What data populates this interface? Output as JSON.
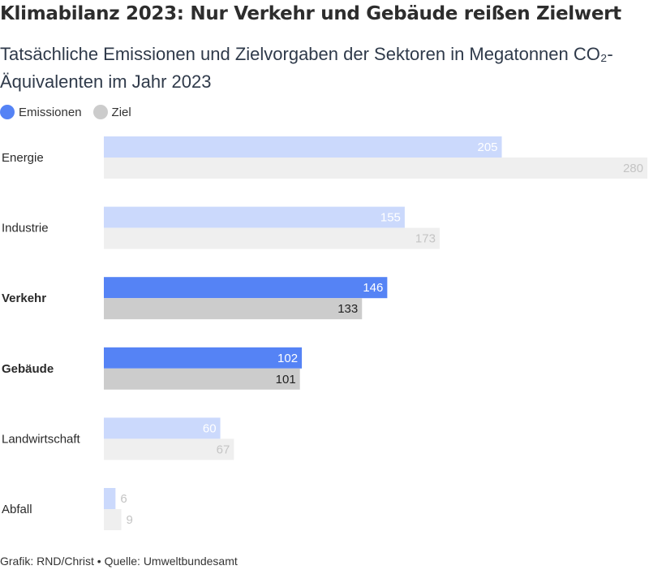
{
  "header": {
    "title": "Klimabilanz 2023: Nur Verkehr und Gebäude reißen Zielwert",
    "subtitle": "Tatsächliche Emissionen und Zielvorgaben der Sektoren in Megatonnen CO₂-Äquivalenten im Jahr 2023"
  },
  "footer": {
    "text": "Grafik: RND/Christ • Quelle: Umweltbundesamt"
  },
  "colors": {
    "emissions_highlight": "#5583f5",
    "emissions_muted": "#cbd9fc",
    "target_highlight": "#cccccc",
    "target_muted": "#efefef",
    "label_light": "#ffffff",
    "label_dark_highlight": "#222222",
    "label_muted": "#c4c4c4"
  },
  "chart_data": {
    "type": "bar",
    "orientation": "horizontal",
    "categories": [
      "Energie",
      "Industrie",
      "Verkehr",
      "Gebäude",
      "Landwirtschaft",
      "Abfall"
    ],
    "highlighted": [
      "Verkehr",
      "Gebäude"
    ],
    "series": [
      {
        "name": "Emissionen",
        "values": [
          205,
          155,
          146,
          102,
          60,
          6
        ]
      },
      {
        "name": "Ziel",
        "values": [
          280,
          173,
          133,
          101,
          67,
          9
        ]
      }
    ],
    "xlim": [
      0,
      280
    ],
    "grid": false,
    "legend": "top-left"
  }
}
